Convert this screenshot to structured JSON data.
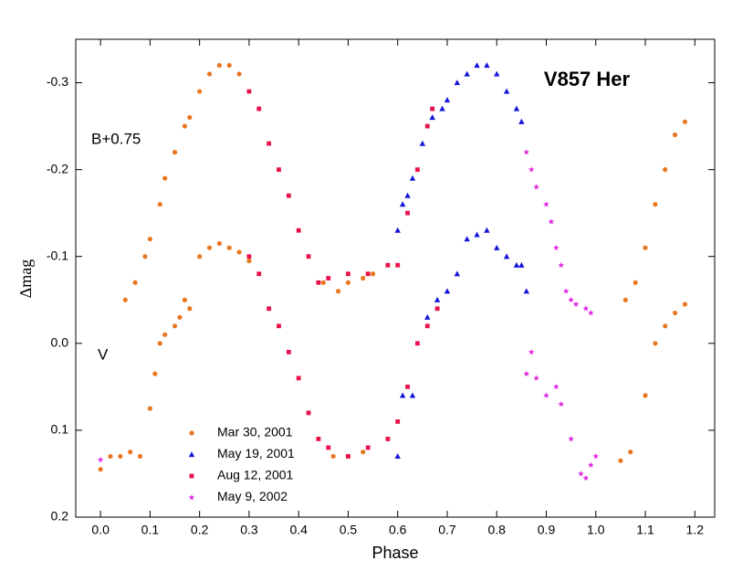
{
  "chart_data": {
    "type": "scatter",
    "title": "V857 Her",
    "xlabel": "Phase",
    "ylabel": "Δmag",
    "annotations": [
      "B+0.75",
      "V"
    ],
    "xlim": [
      -0.05,
      1.24
    ],
    "ylim": [
      0.2,
      -0.35
    ],
    "xticks": [
      {
        "value": 0,
        "label": "0.0"
      },
      0.1,
      0.2,
      0.3,
      0.4,
      0.5,
      0.6,
      0.7,
      0.8,
      0.9,
      {
        "value": 1,
        "label": "1.0"
      },
      1.1,
      1.2
    ],
    "yticks": [
      -0.3,
      -0.2,
      -0.1,
      {
        "value": 0,
        "label": "0.0"
      },
      0.1,
      0.2
    ],
    "series": [
      {
        "name": "Mar 30, 2001",
        "color": "#e87722",
        "marker": "circle",
        "x": [
          0.0,
          0.02,
          0.04,
          0.06,
          0.08,
          0.1,
          0.11,
          0.12,
          0.13,
          0.15,
          0.16,
          0.17,
          0.18,
          0.2,
          0.22,
          0.24,
          0.26,
          0.28,
          0.3,
          0.05,
          0.07,
          0.09,
          0.1,
          0.12,
          0.13,
          0.15,
          0.17,
          0.18,
          0.2,
          0.22,
          0.24,
          0.26,
          0.28,
          0.45,
          0.48,
          0.5,
          0.53,
          0.55,
          0.47,
          0.5,
          0.53,
          1.05,
          1.07,
          1.1,
          1.12,
          1.14,
          1.16,
          1.18,
          1.06,
          1.08,
          1.1,
          1.12,
          1.14,
          1.16,
          1.18
        ],
        "values": [
          0.145,
          0.13,
          0.13,
          0.125,
          0.13,
          0.075,
          0.035,
          0.0,
          -0.01,
          -0.02,
          -0.03,
          -0.05,
          -0.04,
          -0.1,
          -0.11,
          -0.115,
          -0.11,
          -0.105,
          -0.095,
          -0.05,
          -0.07,
          -0.1,
          -0.12,
          -0.16,
          -0.19,
          -0.22,
          -0.25,
          -0.26,
          -0.29,
          -0.31,
          -0.32,
          -0.32,
          -0.31,
          -0.07,
          -0.06,
          -0.07,
          -0.075,
          -0.08,
          0.13,
          0.13,
          0.125,
          0.135,
          0.125,
          0.06,
          0.0,
          -0.02,
          -0.035,
          -0.045,
          -0.05,
          -0.07,
          -0.11,
          -0.16,
          -0.2,
          -0.24,
          -0.255
        ]
      },
      {
        "name": "May 19, 2001",
        "color": "#1414d8",
        "marker": "triangle",
        "x": [
          0.6,
          0.61,
          0.62,
          0.63,
          0.65,
          0.67,
          0.69,
          0.7,
          0.72,
          0.74,
          0.76,
          0.78,
          0.8,
          0.82,
          0.84,
          0.85,
          0.6,
          0.61,
          0.63,
          0.66,
          0.68,
          0.7,
          0.72,
          0.74,
          0.76,
          0.78,
          0.8,
          0.82,
          0.84,
          0.85,
          0.86
        ],
        "values": [
          -0.13,
          -0.16,
          -0.17,
          -0.19,
          -0.23,
          -0.26,
          -0.27,
          -0.28,
          -0.3,
          -0.31,
          -0.32,
          -0.32,
          -0.31,
          -0.29,
          -0.27,
          -0.255,
          0.13,
          0.06,
          0.06,
          -0.03,
          -0.05,
          -0.06,
          -0.08,
          -0.12,
          -0.125,
          -0.13,
          -0.11,
          -0.1,
          -0.09,
          -0.09,
          -0.06
        ]
      },
      {
        "name": "Aug 12, 2001",
        "color": "#e8104a",
        "marker": "square",
        "x": [
          0.3,
          0.32,
          0.34,
          0.36,
          0.38,
          0.4,
          0.42,
          0.44,
          0.46,
          0.5,
          0.54,
          0.58,
          0.6,
          0.62,
          0.64,
          0.66,
          0.67,
          0.3,
          0.32,
          0.34,
          0.36,
          0.38,
          0.4,
          0.42,
          0.44,
          0.46,
          0.5,
          0.54,
          0.58,
          0.6,
          0.62,
          0.64,
          0.66,
          0.68
        ],
        "values": [
          -0.29,
          -0.27,
          -0.23,
          -0.2,
          -0.17,
          -0.13,
          -0.1,
          -0.07,
          -0.075,
          -0.08,
          -0.08,
          -0.09,
          -0.09,
          -0.15,
          -0.2,
          -0.25,
          -0.27,
          -0.1,
          -0.08,
          -0.04,
          -0.02,
          0.01,
          0.04,
          0.08,
          0.11,
          0.12,
          0.13,
          0.12,
          0.11,
          0.09,
          0.05,
          0.0,
          -0.02,
          -0.04
        ]
      },
      {
        "name": "May 9, 2002",
        "color": "#e020e0",
        "marker": "star",
        "x": [
          0.86,
          0.87,
          0.88,
          0.9,
          0.91,
          0.92,
          0.93,
          0.94,
          0.95,
          0.96,
          0.98,
          0.99,
          0.0,
          0.86,
          0.87,
          0.88,
          0.9,
          0.92,
          0.93,
          0.95,
          0.97,
          0.98,
          0.99,
          1.0
        ],
        "values": [
          -0.22,
          -0.2,
          -0.18,
          -0.16,
          -0.14,
          -0.11,
          -0.09,
          -0.06,
          -0.05,
          -0.045,
          -0.04,
          -0.035,
          0.134,
          0.035,
          0.01,
          0.04,
          0.06,
          0.05,
          0.07,
          0.11,
          0.15,
          0.155,
          0.14,
          0.13
        ]
      }
    ]
  }
}
